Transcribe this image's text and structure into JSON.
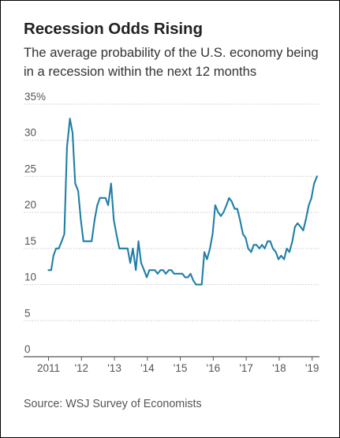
{
  "title": "Recession Odds Rising",
  "subtitle": "The average probability of the U.S. economy being in a recession within the next 12 months",
  "source": "Source: WSJ Survey of Economists",
  "colors": {
    "line": "#1f7fa6",
    "grid": "#c8c8c8",
    "axis": "#555555",
    "text": "#222222"
  },
  "chart_data": {
    "type": "line",
    "title": "Recession Odds Rising",
    "subtitle": "The average probability of the U.S. economy being in a recession within the next 12 months",
    "xlabel": "",
    "ylabel": "",
    "ylim": [
      0,
      35
    ],
    "xlim": [
      2011,
      2019.2
    ],
    "grid": true,
    "y_ticks": [
      {
        "value": 35,
        "label": "35%"
      },
      {
        "value": 30,
        "label": "30"
      },
      {
        "value": 25,
        "label": "25"
      },
      {
        "value": 20,
        "label": "20"
      },
      {
        "value": 15,
        "label": "15"
      },
      {
        "value": 10,
        "label": "10"
      },
      {
        "value": 5,
        "label": "5"
      },
      {
        "value": 0,
        "label": "0"
      }
    ],
    "x_ticks": [
      {
        "value": 2011,
        "label": "2011"
      },
      {
        "value": 2012,
        "label": "'12"
      },
      {
        "value": 2013,
        "label": "'13"
      },
      {
        "value": 2014,
        "label": "'14"
      },
      {
        "value": 2015,
        "label": "'15"
      },
      {
        "value": 2016,
        "label": "'16"
      },
      {
        "value": 2017,
        "label": "'17"
      },
      {
        "value": 2018,
        "label": "'18"
      },
      {
        "value": 2019,
        "label": "'19"
      }
    ],
    "series": [
      {
        "x": [
          2011.0,
          2011.08,
          2011.15,
          2011.23,
          2011.31,
          2011.4,
          2011.48,
          2011.56,
          2011.65,
          2011.73,
          2011.81,
          2011.9,
          2011.98,
          2012.06,
          2012.15,
          2012.23,
          2012.31,
          2012.4,
          2012.48,
          2012.56,
          2012.65,
          2012.73,
          2012.81,
          2012.9,
          2012.98,
          2013.06,
          2013.15,
          2013.23,
          2013.31,
          2013.4,
          2013.48,
          2013.56,
          2013.65,
          2013.73,
          2013.81,
          2013.9,
          2013.98,
          2014.06,
          2014.15,
          2014.23,
          2014.31,
          2014.4,
          2014.48,
          2014.56,
          2014.65,
          2014.73,
          2014.81,
          2014.9,
          2014.98,
          2015.06,
          2015.15,
          2015.23,
          2015.31,
          2015.4,
          2015.48,
          2015.56,
          2015.65,
          2015.73,
          2015.81,
          2015.9,
          2015.98,
          2016.06,
          2016.15,
          2016.23,
          2016.31,
          2016.4,
          2016.48,
          2016.56,
          2016.65,
          2016.73,
          2016.81,
          2016.9,
          2016.98,
          2017.06,
          2017.15,
          2017.23,
          2017.31,
          2017.4,
          2017.48,
          2017.56,
          2017.65,
          2017.73,
          2017.81,
          2017.9,
          2017.98,
          2018.06,
          2018.15,
          2018.23,
          2018.31,
          2018.4,
          2018.48,
          2018.56,
          2018.65,
          2018.73,
          2018.81,
          2018.9,
          2018.98,
          2019.06,
          2019.15
        ],
        "values": [
          12,
          12,
          14,
          15,
          15,
          16,
          17,
          29,
          33,
          31,
          24,
          23,
          19,
          16,
          16,
          16,
          16,
          19,
          21,
          22,
          22,
          22,
          21,
          24,
          19,
          17,
          15,
          15,
          15,
          15,
          13,
          15,
          12,
          16,
          13,
          12,
          11,
          12,
          12,
          12,
          11.5,
          12,
          12,
          11.5,
          12,
          12,
          11.5,
          11.5,
          11.5,
          11.5,
          11,
          11,
          11.5,
          10.5,
          10,
          10,
          10,
          14.5,
          13.5,
          15,
          17,
          21,
          20,
          19.5,
          20,
          21,
          22,
          21.5,
          20.5,
          20.5,
          19,
          17,
          16.5,
          15,
          14.5,
          15.5,
          15.5,
          15,
          15.5,
          15,
          16,
          16,
          15,
          14.5,
          13.5,
          14,
          13.5,
          15,
          14.5,
          16,
          18,
          18.5,
          18,
          17.5,
          19,
          21,
          22,
          24,
          25
        ]
      }
    ]
  }
}
